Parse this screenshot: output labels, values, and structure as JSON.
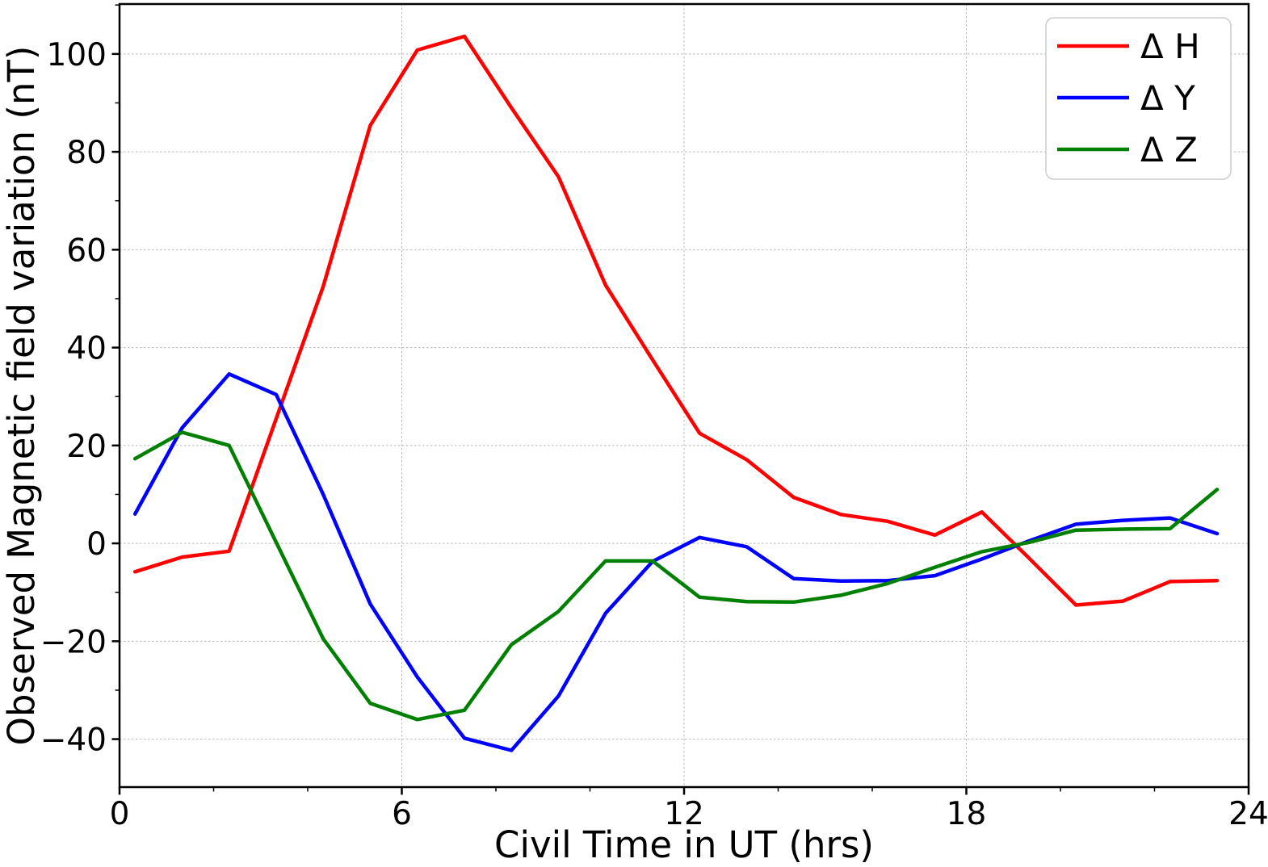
{
  "figure": {
    "background": "#ffffff"
  },
  "chart_data": {
    "type": "line",
    "title": "",
    "xlabel": "Civil Time in UT (hrs)",
    "ylabel": "Observed Magnetic field variation (nT)",
    "x": [
      0.33,
      1.33,
      2.33,
      3.33,
      4.33,
      5.33,
      6.33,
      7.33,
      8.33,
      9.33,
      10.33,
      11.33,
      12.33,
      13.33,
      14.33,
      15.33,
      16.33,
      17.33,
      18.33,
      19.33,
      20.33,
      21.33,
      22.33,
      23.33
    ],
    "series": [
      {
        "name": "delta-H",
        "label": "Δ H",
        "color": "#ff0000",
        "values": [
          -5.8,
          -2.8,
          -1.6,
          25.5,
          52.5,
          85.4,
          100.8,
          103.6,
          89.0,
          74.9,
          52.8,
          37.5,
          22.5,
          17.1,
          9.4,
          5.9,
          4.5,
          1.7,
          6.4,
          -3.0,
          -12.6,
          -11.8,
          -7.8,
          -7.6
        ]
      },
      {
        "name": "delta-Y",
        "label": "Δ Y",
        "color": "#0000ff",
        "values": [
          6.0,
          23.6,
          34.6,
          30.4,
          10.0,
          -12.4,
          -27.3,
          -39.8,
          -42.3,
          -31.2,
          -14.3,
          -3.7,
          1.2,
          -0.7,
          -7.2,
          -7.7,
          -7.6,
          -6.6,
          -3.2,
          0.5,
          3.9,
          4.7,
          5.2,
          2.0
        ]
      },
      {
        "name": "delta-Z",
        "label": "Δ Z",
        "color": "#008000",
        "values": [
          17.3,
          22.7,
          20.0,
          0.2,
          -19.5,
          -32.7,
          -36.0,
          -34.1,
          -20.7,
          -13.9,
          -3.6,
          -3.6,
          -11.0,
          -11.9,
          -12.0,
          -10.6,
          -8.2,
          -4.9,
          -1.7,
          0.2,
          2.7,
          2.9,
          3.0,
          11.0
        ]
      }
    ],
    "xlim": [
      0,
      24
    ],
    "ylim": [
      -49.8,
      110.2
    ],
    "xticks": [
      0,
      6,
      12,
      18,
      24
    ],
    "xticks_minor": [
      2,
      4,
      8,
      10,
      14,
      16,
      20,
      22
    ],
    "yticks": [
      -40,
      -20,
      0,
      20,
      40,
      60,
      80,
      100
    ],
    "yticks_minor": [
      -30,
      -10,
      10,
      30,
      50,
      70,
      90,
      110
    ],
    "grid": true,
    "grid_style": "dashed",
    "grid_color": "#b8b8b8",
    "spine_color": "#000000",
    "tick_color": "#000000",
    "legend_position": "upper-right"
  }
}
